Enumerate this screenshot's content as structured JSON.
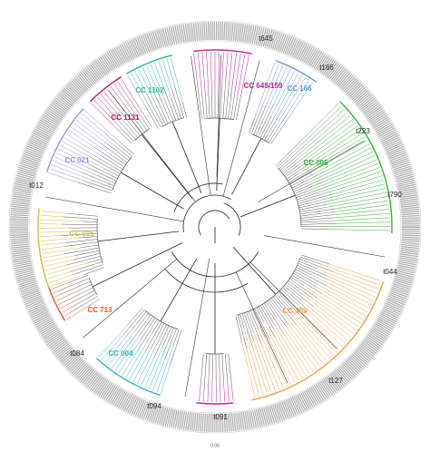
{
  "labels": [
    {
      "text": "t645",
      "color": "#222222"
    },
    {
      "text": "CC 645/159",
      "color": "#c0189a"
    },
    {
      "text": "t166",
      "color": "#222222"
    },
    {
      "text": "CC 166",
      "color": "#5b9bd5"
    },
    {
      "text": "CC 1102",
      "color": "#2ab5a0"
    },
    {
      "text": "CC 1131",
      "color": "#c01060"
    },
    {
      "text": "t223",
      "color": "#222222"
    },
    {
      "text": "CC 005",
      "color": "#2db52d"
    },
    {
      "text": "CC 021",
      "color": "#9b8fd8"
    },
    {
      "text": "t012",
      "color": "#222222"
    },
    {
      "text": "t790",
      "color": "#222222"
    },
    {
      "text": "CC 015",
      "color": "#c8c040"
    },
    {
      "text": "t044",
      "color": "#222222"
    },
    {
      "text": "CC 359",
      "color": "#f0a040"
    },
    {
      "text": "CC 713",
      "color": "#e05020"
    },
    {
      "text": "t084",
      "color": "#222222"
    },
    {
      "text": "CC 004",
      "color": "#30b0d0"
    },
    {
      "text": "t127",
      "color": "#222222"
    },
    {
      "text": "t094",
      "color": "#222222"
    },
    {
      "text": "t091",
      "color": "#222222"
    }
  ],
  "scale": "0.05"
}
